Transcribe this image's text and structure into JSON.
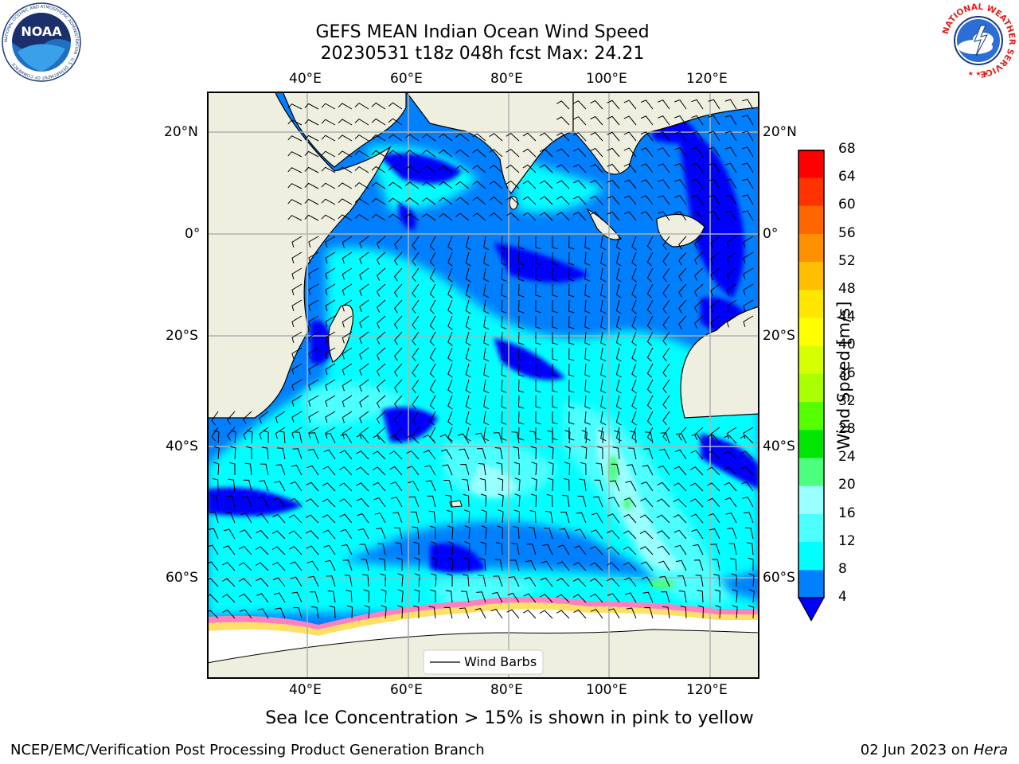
{
  "title": {
    "line1": "GEFS MEAN Indian Ocean Wind Speed",
    "line2": "20230531 t18z 048h fcst   Max: 24.21"
  },
  "logos": {
    "left": {
      "text": "NOAA",
      "ring_text": "NATIONAL OCEANIC AND ATMOSPHERIC ADMINISTRATION · U.S. DEPARTMENT OF COMMERCE",
      "icon": "noaa-logo"
    },
    "right": {
      "ring_text": "NATIONAL WEATHER SERVICE",
      "icon": "nws-logo"
    }
  },
  "map": {
    "lon_labels": [
      "40°E",
      "60°E",
      "80°E",
      "100°E",
      "120°E"
    ],
    "lat_labels_left": [
      "20°N",
      "0°",
      "20°S",
      "40°S",
      "60°S"
    ],
    "lat_labels_right": [
      "20°N",
      "0°",
      "20°S",
      "40°S",
      "60°S"
    ],
    "legend_label": "Wind Barbs",
    "colors": {
      "land": "#efefdf",
      "ice": "#ffffff",
      "coast": "#000000",
      "grid": "#b0b0b0"
    }
  },
  "colorbar": {
    "label": "Wind Speed [m/s]",
    "ticks": [
      "68",
      "64",
      "60",
      "56",
      "52",
      "48",
      "44",
      "40",
      "36",
      "32",
      "28",
      "24",
      "20",
      "16",
      "12",
      "8",
      "4"
    ],
    "colors": [
      "#0000ff",
      "#007fff",
      "#00ffff",
      "#4dffff",
      "#99ffff",
      "#4cff7f",
      "#00e600",
      "#56ff00",
      "#aaff00",
      "#d6ff00",
      "#ffff00",
      "#ffe600",
      "#ffbf00",
      "#ff9100",
      "#ff6600",
      "#ff3300",
      "#ff0000"
    ]
  },
  "caption": "Sea Ice Concentration > 15% is shown in pink to yellow",
  "footer": {
    "left": "NCEP/EMC/Verification Post Processing Product Generation Branch",
    "date": "02 Jun 2023 on ",
    "machine": "Hera"
  }
}
